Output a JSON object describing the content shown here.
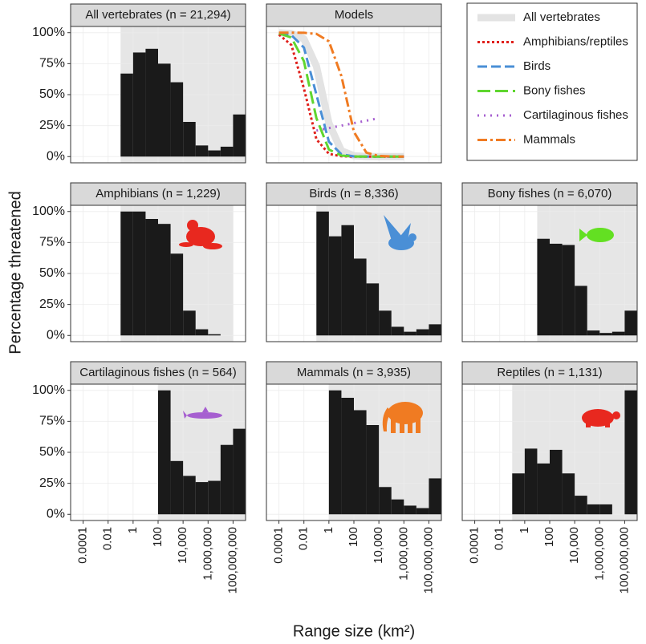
{
  "ylabel": "Percentage threatened",
  "xlabel": "Range size (km²)",
  "chart_data": [
    {
      "type": "histogram",
      "title": "All vertebrates (n = 21,294)",
      "color": "#1a1a1a",
      "log_x": true,
      "grid": true,
      "bins": [
        0.1,
        1,
        10,
        100,
        1000,
        10000,
        100000,
        1000000,
        10000000,
        100000000,
        1000000000
      ],
      "values": [
        67,
        84,
        87,
        75,
        60,
        28,
        9,
        5,
        8,
        34
      ],
      "xlim": [
        1e-05,
        1000000000
      ],
      "ylim": [
        -5,
        105
      ],
      "xticks": [
        0.0001,
        0.01,
        1,
        100,
        {
          "value": 10000,
          "label": "10,000"
        },
        {
          "value": 1000000,
          "label": "1,000,000"
        },
        {
          "value": 100000000,
          "label": "100,000,000"
        }
      ],
      "yticks": [
        {
          "value": 0,
          "label": "0%"
        },
        {
          "value": 25,
          "label": "25%"
        },
        {
          "value": 50,
          "label": "50%"
        },
        {
          "value": 75,
          "label": "75%"
        },
        {
          "value": 100,
          "label": "100%"
        }
      ]
    },
    {
      "type": "line",
      "title": "Models",
      "log_x": true,
      "grid": true,
      "xlim": [
        1e-05,
        1000000000
      ],
      "ylim": [
        -5,
        105
      ],
      "xticks": [
        0.0001,
        0.01,
        1,
        100,
        {
          "value": 10000,
          "label": "10,000"
        },
        {
          "value": 1000000,
          "label": "1,000,000"
        },
        {
          "value": 100000000,
          "label": "100,000,000"
        }
      ],
      "yticks": [
        {
          "value": 0,
          "label": "0%"
        },
        {
          "value": 25,
          "label": "25%"
        },
        {
          "value": 50,
          "label": "50%"
        },
        {
          "value": 75,
          "label": "75%"
        },
        {
          "value": 100,
          "label": "100%"
        }
      ],
      "series": [
        {
          "name": "All vertebrates",
          "color": "#e3e3e3",
          "dash": "none",
          "linewidth": 9,
          "x": [
            0.0001,
            0.001,
            0.01,
            0.1,
            1,
            10,
            100,
            1000,
            10000,
            100000,
            1000000
          ],
          "values": [
            99.9,
            99.3,
            95,
            73,
            27,
            4.7,
            0.7,
            0.1,
            0,
            0,
            0
          ]
        },
        {
          "name": "Amphibians/reptiles",
          "color": "#e0201b",
          "dash": "3,3",
          "linewidth": 3,
          "x": [
            0.0001,
            0.001,
            0.01,
            0.1,
            1,
            10,
            100,
            1000,
            10000,
            100000,
            1000000
          ],
          "values": [
            98.5,
            90,
            55,
            14,
            2.2,
            0.3,
            0,
            0,
            0,
            0,
            0
          ]
        },
        {
          "name": "Birds",
          "color": "#4a8fd6",
          "dash": "12,5",
          "linewidth": 3,
          "x": [
            0.0001,
            0.001,
            0.01,
            0.1,
            1,
            10,
            100,
            1000,
            10000,
            100000,
            1000000
          ],
          "values": [
            99.8,
            98,
            88,
            50,
            12,
            1.8,
            0.2,
            0,
            0,
            0,
            0
          ]
        },
        {
          "name": "Bony fishes",
          "color": "#5fd62f",
          "dash": "16,6",
          "linewidth": 3,
          "x": [
            0.0001,
            0.001,
            0.01,
            0.1,
            1,
            10,
            100,
            1000,
            10000,
            100000,
            1000000
          ],
          "values": [
            99.5,
            96,
            77,
            31,
            5.7,
            0.8,
            0.1,
            0,
            0,
            0,
            0
          ]
        },
        {
          "name": "Cartilaginous fishes",
          "color": "#a65fd0",
          "dash": "2,6",
          "linewidth": 3,
          "x": [
            0.1,
            1,
            10,
            100,
            1000,
            10000
          ],
          "values": [
            21,
            23,
            25,
            27,
            29,
            31
          ]
        },
        {
          "name": "Mammals",
          "color": "#f07b22",
          "dash": "12,4,3,4",
          "linewidth": 3,
          "x": [
            0.0001,
            0.001,
            0.01,
            0.1,
            1,
            10,
            100,
            1000,
            10000,
            100000,
            1000000
          ],
          "values": [
            100,
            100,
            99.9,
            99,
            93,
            65,
            20,
            3.2,
            0.5,
            0.1,
            0
          ]
        }
      ]
    },
    {
      "type": "histogram",
      "title": "Amphibians (n = 1,229)",
      "color": "#1a1a1a",
      "log_x": true,
      "grid": true,
      "bins": [
        0.1,
        1,
        10,
        100,
        1000,
        10000,
        100000,
        1000000,
        10000000,
        100000000
      ],
      "values": [
        100,
        100,
        94,
        90,
        66,
        20,
        5,
        1,
        0
      ],
      "xlim": [
        1e-05,
        1000000000
      ],
      "ylim": [
        -5,
        105
      ],
      "xticks": [
        0.0001,
        0.01,
        1,
        100,
        {
          "value": 10000,
          "label": "10,000"
        },
        {
          "value": 1000000,
          "label": "1,000,000"
        },
        {
          "value": 100000000,
          "label": "100,000,000"
        }
      ],
      "yticks": [
        {
          "value": 0,
          "label": "0%"
        },
        {
          "value": 25,
          "label": "25%"
        },
        {
          "value": 50,
          "label": "50%"
        },
        {
          "value": 75,
          "label": "75%"
        },
        {
          "value": 100,
          "label": "100%"
        }
      ]
    },
    {
      "type": "histogram",
      "title": "Birds (n = 8,336)",
      "color": "#1a1a1a",
      "log_x": true,
      "grid": true,
      "bins": [
        0.1,
        1,
        10,
        100,
        1000,
        10000,
        100000,
        1000000,
        10000000,
        100000000,
        1000000000
      ],
      "values": [
        100,
        80,
        89,
        62,
        42,
        20,
        7,
        3,
        5,
        9
      ],
      "xlim": [
        1e-05,
        1000000000
      ],
      "ylim": [
        -5,
        105
      ],
      "xticks": [
        0.0001,
        0.01,
        1,
        100,
        {
          "value": 10000,
          "label": "10,000"
        },
        {
          "value": 1000000,
          "label": "1,000,000"
        },
        {
          "value": 100000000,
          "label": "100,000,000"
        }
      ],
      "yticks": [
        {
          "value": 0,
          "label": "0%"
        },
        {
          "value": 25,
          "label": "25%"
        },
        {
          "value": 50,
          "label": "50%"
        },
        {
          "value": 75,
          "label": "75%"
        },
        {
          "value": 100,
          "label": "100%"
        }
      ]
    },
    {
      "type": "histogram",
      "title": "Bony fishes (n = 6,070)",
      "color": "#1a1a1a",
      "log_x": true,
      "grid": true,
      "bins": [
        10,
        100,
        1000,
        10000,
        100000,
        1000000,
        10000000,
        100000000,
        1000000000
      ],
      "values": [
        78,
        74,
        73,
        40,
        4,
        2,
        3,
        20
      ],
      "xlim": [
        1e-05,
        1000000000
      ],
      "ylim": [
        -5,
        105
      ],
      "xticks": [
        0.0001,
        0.01,
        1,
        100,
        {
          "value": 10000,
          "label": "10,000"
        },
        {
          "value": 1000000,
          "label": "1,000,000"
        },
        {
          "value": 100000000,
          "label": "100,000,000"
        }
      ],
      "yticks": [
        {
          "value": 0,
          "label": "0%"
        },
        {
          "value": 25,
          "label": "25%"
        },
        {
          "value": 50,
          "label": "50%"
        },
        {
          "value": 75,
          "label": "75%"
        },
        {
          "value": 100,
          "label": "100%"
        }
      ]
    },
    {
      "type": "histogram",
      "title": "Cartilaginous fishes (n = 564)",
      "color": "#1a1a1a",
      "log_x": true,
      "grid": true,
      "bins": [
        100,
        1000,
        10000,
        100000,
        1000000,
        10000000,
        100000000,
        1000000000
      ],
      "values": [
        100,
        43,
        31,
        26,
        27,
        56,
        69
      ],
      "xlim": [
        1e-05,
        1000000000
      ],
      "ylim": [
        -5,
        105
      ],
      "xticks": [
        0.0001,
        0.01,
        1,
        100,
        {
          "value": 10000,
          "label": "10,000"
        },
        {
          "value": 1000000,
          "label": "1,000,000"
        },
        {
          "value": 100000000,
          "label": "100,000,000"
        }
      ],
      "yticks": [
        {
          "value": 0,
          "label": "0%"
        },
        {
          "value": 25,
          "label": "25%"
        },
        {
          "value": 50,
          "label": "50%"
        },
        {
          "value": 75,
          "label": "75%"
        },
        {
          "value": 100,
          "label": "100%"
        }
      ]
    },
    {
      "type": "histogram",
      "title": "Mammals (n = 3,935)",
      "color": "#1a1a1a",
      "log_x": true,
      "grid": true,
      "bins": [
        1,
        10,
        100,
        1000,
        10000,
        100000,
        1000000,
        10000000,
        100000000,
        1000000000
      ],
      "values": [
        100,
        94,
        84,
        72,
        22,
        12,
        7,
        5,
        29
      ],
      "xlim": [
        1e-05,
        1000000000
      ],
      "ylim": [
        -5,
        105
      ],
      "xticks": [
        0.0001,
        0.01,
        1,
        100,
        {
          "value": 10000,
          "label": "10,000"
        },
        {
          "value": 1000000,
          "label": "1,000,000"
        },
        {
          "value": 100000000,
          "label": "100,000,000"
        }
      ],
      "yticks": [
        {
          "value": 0,
          "label": "0%"
        },
        {
          "value": 25,
          "label": "25%"
        },
        {
          "value": 50,
          "label": "50%"
        },
        {
          "value": 75,
          "label": "75%"
        },
        {
          "value": 100,
          "label": "100%"
        }
      ]
    },
    {
      "type": "histogram",
      "title": "Reptiles (n = 1,131)",
      "color": "#1a1a1a",
      "log_x": true,
      "grid": true,
      "bins": [
        0.1,
        1,
        10,
        100,
        1000,
        10000,
        100000,
        1000000,
        10000000,
        100000000,
        1000000000
      ],
      "values": [
        33,
        53,
        41,
        52,
        33,
        15,
        8,
        8,
        0,
        100
      ],
      "xlim": [
        1e-05,
        1000000000
      ],
      "ylim": [
        -5,
        105
      ],
      "xticks": [
        0.0001,
        0.01,
        1,
        100,
        {
          "value": 10000,
          "label": "10,000"
        },
        {
          "value": 1000000,
          "label": "1,000,000"
        },
        {
          "value": 100000000,
          "label": "100,000,000"
        }
      ],
      "yticks": [
        {
          "value": 0,
          "label": "0%"
        },
        {
          "value": 25,
          "label": "25%"
        },
        {
          "value": 50,
          "label": "50%"
        },
        {
          "value": 75,
          "label": "75%"
        },
        {
          "value": 100,
          "label": "100%"
        }
      ]
    }
  ]
}
